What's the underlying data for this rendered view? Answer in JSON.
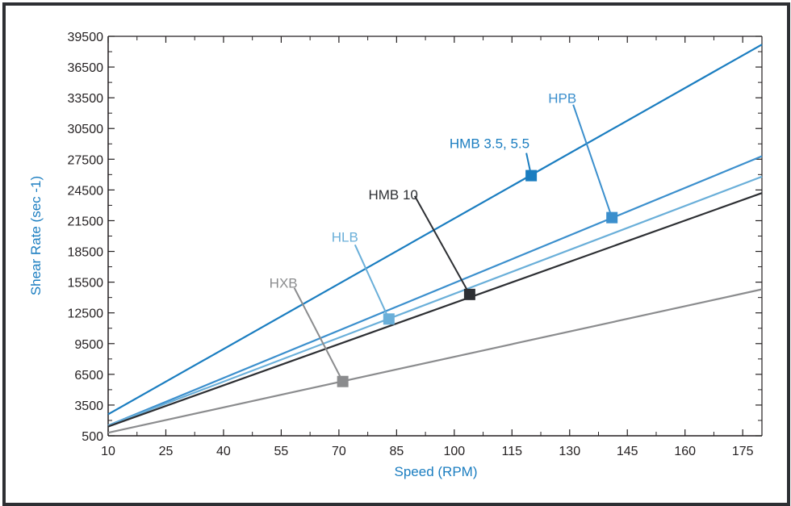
{
  "chart_data": {
    "type": "line",
    "xlabel": "Speed (RPM)",
    "ylabel": "Shear Rate (sec -1)",
    "xlim": [
      10,
      180
    ],
    "ylim": [
      500,
      39500
    ],
    "x_ticks": [
      "10",
      "25",
      "40",
      "55",
      "70",
      "85",
      "100",
      "115",
      "130",
      "145",
      "160",
      "175"
    ],
    "y_ticks": [
      "500",
      "3500",
      "6500",
      "9500",
      "12500",
      "15500",
      "18500",
      "21500",
      "24500",
      "27500",
      "30500",
      "33500",
      "36500",
      "39500"
    ],
    "grid": false,
    "series": [
      {
        "name": "HMB 3.5, 5.5",
        "color": "#1a7dc0",
        "x": [
          10,
          180
        ],
        "y": [
          2600,
          38700
        ],
        "marker": {
          "x": 120,
          "y": 25900
        }
      },
      {
        "name": "HPB",
        "color": "#3b8fcd",
        "x": [
          10,
          180
        ],
        "y": [
          1500,
          27800
        ],
        "marker": {
          "x": 141,
          "y": 21800
        }
      },
      {
        "name": "HLB",
        "color": "#6aafd9",
        "x": [
          10,
          180
        ],
        "y": [
          1500,
          25800
        ],
        "marker": {
          "x": 83,
          "y": 11900
        }
      },
      {
        "name": "HMB 10",
        "color": "#2d2f33",
        "x": [
          10,
          180
        ],
        "y": [
          1400,
          24200
        ],
        "marker": {
          "x": 104,
          "y": 14300
        }
      },
      {
        "name": "HXB",
        "color": "#8b8c8e",
        "x": [
          10,
          180
        ],
        "y": [
          800,
          14800
        ],
        "marker": {
          "x": 71,
          "y": 5800
        }
      }
    ]
  }
}
